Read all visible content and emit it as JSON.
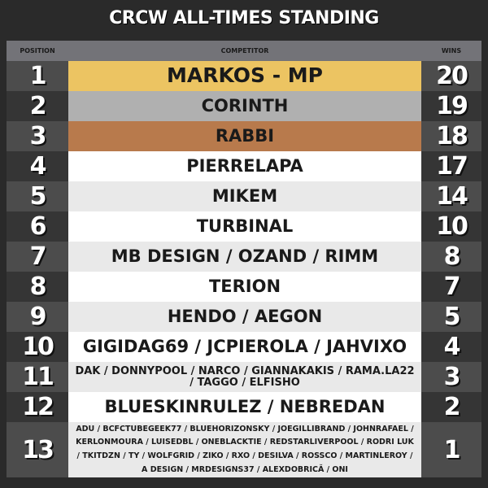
{
  "title": "CRCW ALL-TIMES STANDING",
  "headers": {
    "position": "POSITION",
    "competitor": "COMPETITOR",
    "wins": "WINS"
  },
  "colors": {
    "gold": "#ecc462",
    "silver": "#b0b0b0",
    "bronze": "#b87a4c",
    "background": "#2a2a2a"
  },
  "rows": [
    {
      "position": "1",
      "competitor": "MARKOS - MP",
      "wins": "20"
    },
    {
      "position": "2",
      "competitor": "CORINTH",
      "wins": "19"
    },
    {
      "position": "3",
      "competitor": "RABBI",
      "wins": "18"
    },
    {
      "position": "4",
      "competitor": "PIERRELAPA",
      "wins": "17"
    },
    {
      "position": "5",
      "competitor": "MIKEM",
      "wins": "14"
    },
    {
      "position": "6",
      "competitor": "TURBINAL",
      "wins": "10"
    },
    {
      "position": "7",
      "competitor": "MB DESIGN / OZAND / RIMM",
      "wins": "8"
    },
    {
      "position": "8",
      "competitor": "TERION",
      "wins": "7"
    },
    {
      "position": "9",
      "competitor": "HENDO / AEGON",
      "wins": "5"
    },
    {
      "position": "10",
      "competitor": "GIGIDAG69 / JCPIEROLA / JAHVIXO",
      "wins": "4"
    },
    {
      "position": "11",
      "competitor": "DAK / DONNYPOOL / NARCO / GIANNAKAKIS / RAMA.LA22 / TAGGO / ELFISHO",
      "wins": "3"
    },
    {
      "position": "12",
      "competitor": "BLUESKINRULEZ / NEBREDAN",
      "wins": "2"
    },
    {
      "position": "13",
      "competitor": "ADU / BCFCTUBEGEEK77 / BLUEHORIZONSKY / JOEGILLIBRAND / JOHNRAFAEL / KERLONMOURA / LUISEDBL / ONEBLACKTIE / REDSTARLIVERPOOL / RODRI LUK / TKITDZN / TY / WOLFGRID / ZIKO / RXO / DESILVA / ROSSCO / MARTINLEROY / A DESIGN / MRDESIGNS37 / ALEXDOBRICĂ / ONI",
      "wins": "1"
    }
  ]
}
